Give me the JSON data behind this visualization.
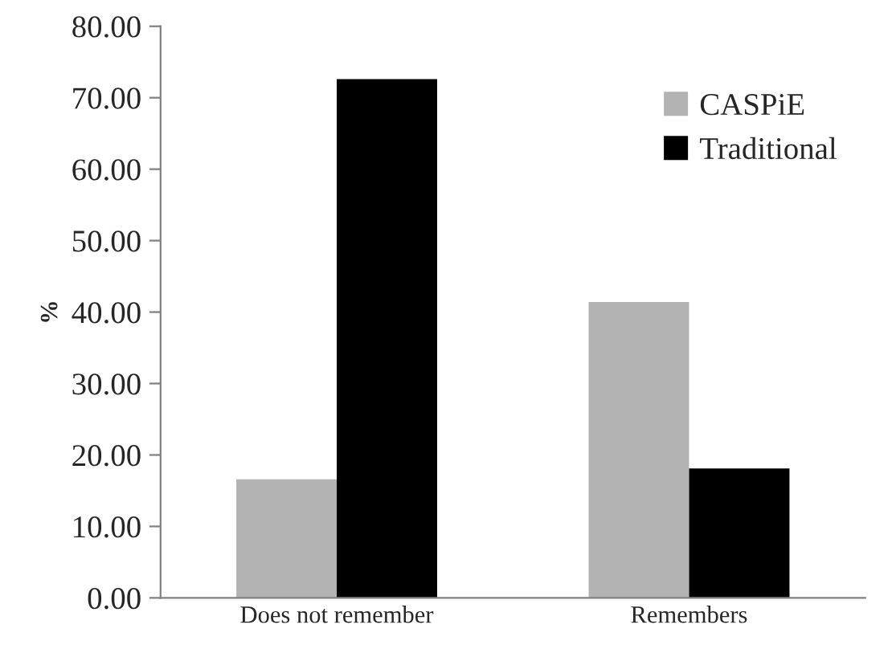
{
  "chart_data": {
    "type": "bar",
    "ylabel": "%",
    "categories": [
      "Does not remember",
      "Remembers"
    ],
    "series": [
      {
        "name": "CASPiE",
        "color": "#b3b3b3",
        "values": [
          16.6,
          41.4
        ]
      },
      {
        "name": "Traditional",
        "color": "#000000",
        "values": [
          72.6,
          18.1
        ]
      }
    ],
    "ylim": [
      0,
      80
    ],
    "yticks": [
      {
        "value": 0,
        "label": "0.00"
      },
      {
        "value": 10,
        "label": "10.00"
      },
      {
        "value": 20,
        "label": "20.00"
      },
      {
        "value": 30,
        "label": "30.00"
      },
      {
        "value": 40,
        "label": "40.00"
      },
      {
        "value": 50,
        "label": "50.00"
      },
      {
        "value": 60,
        "label": "60.00"
      },
      {
        "value": 70,
        "label": "70.00"
      },
      {
        "value": 80,
        "label": "80.00"
      }
    ],
    "legend": "right",
    "grid": false
  }
}
